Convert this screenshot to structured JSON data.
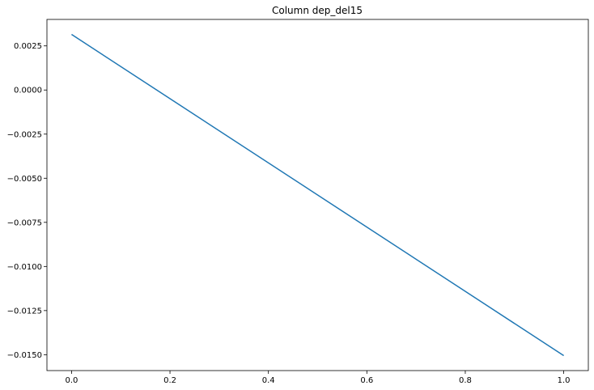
{
  "chart_data": {
    "type": "line",
    "title": "Column dep_del15",
    "xlabel": "",
    "ylabel": "",
    "x": [
      0.0,
      1.0
    ],
    "series": [
      {
        "values": [
          0.00315,
          -0.01505
        ],
        "color": "#1f77b4"
      }
    ],
    "xlim": [
      -0.05,
      1.05
    ],
    "ylim": [
      -0.0159,
      0.004
    ],
    "xticks": [
      0.0,
      0.2,
      0.4,
      0.6,
      0.8,
      1.0
    ],
    "xtick_labels": [
      "0.0",
      "0.2",
      "0.4",
      "0.6",
      "0.8",
      "1.0"
    ],
    "yticks": [
      0.0025,
      0.0,
      -0.0025,
      -0.005,
      -0.0075,
      -0.01,
      -0.0125,
      -0.015
    ],
    "ytick_labels": [
      "0.0025",
      "0.0000",
      "−0.0025",
      "−0.0050",
      "−0.0075",
      "−0.0100",
      "−0.0125",
      "−0.0150"
    ],
    "grid": false,
    "legend": "none"
  }
}
